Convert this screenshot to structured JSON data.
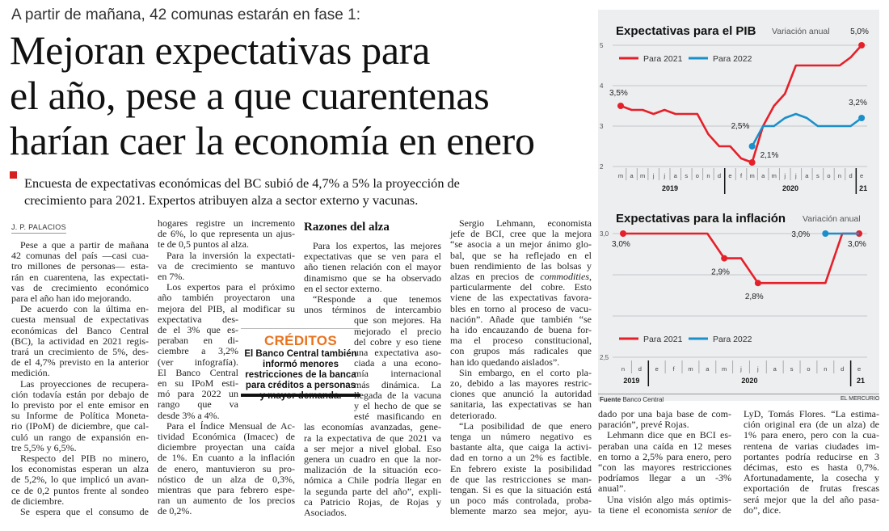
{
  "kicker": "A partir de mañana, 42 comunas estarán en fase 1:",
  "headline": [
    "Mejoran expectativas para",
    "el año, pese a que cuarentenas",
    "harían caer la economía en enero"
  ],
  "deck": [
    "Encuesta de expectativas económicas del BC subió de 4,7% a 5% la proyección de",
    "crecimiento para 2021. Expertos atribuyen alza a sector externo y vacunas."
  ],
  "columns": [
    {
      "byline": "J. P. PALACIOS",
      "paragraphs": [
        {
          "lines": [
            "Pese a que a partir de mañana",
            "42 comunas del país —casi cua-",
            "tro millones de personas— esta-",
            "rán en cuarentena, las expectati-",
            "vas de crecimiento económico",
            "para el año han ido mejorando."
          ]
        },
        {
          "lines": [
            "De acuerdo con la última en-",
            "cuesta mensual de expectativas",
            "económicas del Banco Central",
            "(BC), la actividad en 2021 regis-",
            "trará un crecimiento de 5%, des-",
            "de el 4,7% previsto en la anterior",
            "medición."
          ]
        },
        {
          "lines": [
            "Las proyecciones de recupera-",
            "ción todavía están por debajo de",
            "lo previsto por el ente emisor en",
            "su Informe de Política Moneta-",
            "rio (IPoM) de diciembre, que cal-",
            "culó un rango de expansión en-",
            "tre 5,5% y 6,5%."
          ]
        },
        {
          "lines": [
            "Respecto del PIB no minero,",
            "los economistas esperan un alza",
            "de 5,2%, lo que implicó un avan-",
            "ce de 0,2 puntos frente al sondeo",
            "de diciembre."
          ]
        },
        {
          "lines": [
            "Se espera que el consumo de"
          ],
          "open": true
        }
      ]
    },
    {
      "paragraphs": [
        {
          "cont": true,
          "lines": [
            "hogares registre un incremento",
            "de 6%, lo que representa un ajus-",
            "te de 0,5 puntos al alza."
          ]
        },
        {
          "lines": [
            "Para la inversión la expectati-",
            "va de crecimiento se mantuvo",
            "en 7%."
          ]
        },
        {
          "lines": [
            "Los expertos para el próximo",
            "año también proyectaron una",
            "mejora del PIB, al modificar su",
            "expectativa des-",
            "de el 3% que es-",
            "peraban en di-",
            "ciembre a 3,2%",
            "(ver infografía).",
            "El Banco Central",
            "en su IPoM esti-",
            "mó para 2022 un",
            "rango que va",
            "desde 3% a 4%."
          ]
        },
        {
          "lines": [
            "Para el Índice Mensual de Ac-",
            "tividad Económica (Imacec) de",
            "diciembre proyectan una caída",
            "de 1%. En cuanto a la inflación",
            "de enero, mantuvieron su pro-",
            "nóstico de un alza de 0,3%,",
            "mientras que para febrero espe-",
            "ran un aumento de los precios",
            "de 0,2%."
          ]
        }
      ]
    },
    {
      "subhead": "Razones del alza",
      "paragraphs": [
        {
          "lines": [
            "Para los expertos, las mejores",
            "expectativas que se ven para el",
            "año tienen relación con el mayor",
            "dinamismo que se ha observado",
            "en el sector externo."
          ]
        },
        {
          "lines": [
            "“Responde a que tenemos",
            "unos términos de intercambio",
            "que son mejores. Ha",
            "mejorado el precio",
            "del cobre y eso tiene",
            "una expectativa aso-",
            "ciada a una econo-",
            "mía internacional",
            "más dinámica. La",
            "llegada de la vacuna",
            "y el hecho de que se",
            "esté masificando en",
            "las economías avanzadas, gene-",
            "ra la expectativa de que 2021 va",
            "a ser mejor a nivel global. Eso",
            "genera un cuadro en que la nor-",
            "malización de la situación eco-",
            "nómica a Chile podría llegar en",
            "la segunda parte del año”, expli-",
            "ca Patricio Rojas, de Rojas y",
            "Asociados."
          ]
        }
      ]
    },
    {
      "paragraphs": [
        {
          "lines": [
            "Sergio Lehmann, economista",
            "jefe de BCI, cree que la mejora",
            "“se asocia a un mejor ánimo glo-",
            "bal, que se ha reflejado en el",
            "buen rendimiento de las bolsas y",
            "alzas en precios de *commodities*,",
            "particularmente del cobre. Esto",
            "viene de las expectativas favora-",
            "bles en torno al proceso de vacu-",
            "nación”. Añade que también “se",
            "ha ido encauzando de buena for-",
            "ma el proceso constitucional,",
            "con grupos más radicales que",
            "han ido quedando aislados”."
          ]
        },
        {
          "lines": [
            "Sin embargo, en el corto pla-",
            "zo, debido a las mayores restric-",
            "ciones que anunció la autoridad",
            "sanitaria, las expectativas se han",
            "deteriorado."
          ]
        },
        {
          "lines": [
            "“La posibilidad de que enero",
            "tenga un número negativo es",
            "bastante alta, que caiga la activi-",
            "dad en torno a un 2% es factible.",
            "En febrero existe la posibilidad",
            "de que las restricciones se man-",
            "tengan. Si es que la situación está",
            "un poco más controlada, proba-",
            "blemente marzo sea mejor, ayu-"
          ],
          "open": true
        }
      ]
    },
    {
      "paragraphs": [
        {
          "cont": true,
          "lines": [
            "dado por una baja base de com-",
            "paración”, prevé Rojas."
          ]
        },
        {
          "lines": [
            "Lehmann dice que en BCI es-",
            "peraban una caída en 12 meses",
            "en torno a 2,5% para enero, pero",
            "“con las mayores restricciones",
            "podríamos llegar a un -3%",
            "anual”."
          ]
        },
        {
          "lines": [
            "Una visión algo más optimis-",
            "ta tiene el economista *senior* de"
          ],
          "open": true
        }
      ]
    },
    {
      "paragraphs": [
        {
          "cont": true,
          "lines": [
            "LyD, Tomás Flores. “La estima-",
            "ción original era (de un alza) de",
            "1% para enero, pero con la cua-",
            "rentena de varias ciudades im-",
            "portantes podría reducirse en 3",
            "décimas, esto es hasta 0,7%.",
            "Afortunadamente, la cosecha y",
            "exportación de frutas frescas",
            "será mejor que la del año pasa-",
            "do”, dice."
          ]
        }
      ]
    }
  ],
  "sidebar_box": {
    "title": "CRÉDITOS",
    "lines": [
      "El Banco Central también",
      "informó menores",
      "restricciones de la banca",
      "para créditos a personas",
      "y mayor demanda."
    ],
    "title_color": "#e8731f"
  },
  "chart_data": [
    {
      "type": "line",
      "title": "Expectativas para el PIB",
      "subtitle": "Variación anual",
      "yticks": [
        "2",
        "3",
        "4",
        "5"
      ],
      "ylim": [
        2,
        5
      ],
      "months": [
        "m",
        "a",
        "m",
        "j",
        "j",
        "a",
        "s",
        "o",
        "n",
        "d",
        "e",
        "f",
        "m",
        "a",
        "m",
        "j",
        "j",
        "a",
        "s",
        "o",
        "n",
        "d",
        "e"
      ],
      "years": [
        {
          "label": "2019",
          "from": 0,
          "to": 9
        },
        {
          "label": "2020",
          "from": 10,
          "to": 21
        },
        {
          "label": "21",
          "from": 22,
          "to": 22
        }
      ],
      "legend": [
        "Para 2021",
        "Para 2022"
      ],
      "series": [
        {
          "name": "Para 2021",
          "color": "#e5202a",
          "start": 0,
          "values": [
            3.5,
            3.4,
            3.4,
            3.3,
            3.4,
            3.3,
            3.3,
            3.3,
            2.8,
            2.5,
            2.5,
            2.2,
            2.1,
            3.0,
            3.5,
            3.8,
            4.5,
            4.5,
            4.5,
            4.5,
            4.5,
            4.7,
            5.0
          ],
          "markers": [
            0,
            12,
            22
          ]
        },
        {
          "name": "Para 2022",
          "color": "#1a8fc9",
          "start": 12,
          "values": [
            2.5,
            3.0,
            3.0,
            3.2,
            3.3,
            3.2,
            3.0,
            3.0,
            3.0,
            3.0,
            3.2
          ],
          "markers": [
            0,
            10
          ]
        }
      ],
      "point_labels": [
        {
          "series": 0,
          "index": 0,
          "text": "3,5%"
        },
        {
          "series": 1,
          "index": 0,
          "text": "2,5%"
        },
        {
          "series": 0,
          "index": 12,
          "text": "2,1%"
        },
        {
          "series": 0,
          "index": 22,
          "text": "5,0%"
        },
        {
          "series": 1,
          "index": 10,
          "text": "3,2%"
        }
      ]
    },
    {
      "type": "line",
      "title": "Expectativas para la inflación",
      "subtitle": "Variación anual",
      "yticks": [
        "2,5",
        "3,0"
      ],
      "ylim": [
        2.5,
        3.0
      ],
      "months": [
        "n",
        "d",
        "e",
        "f",
        "m",
        "a",
        "m",
        "j",
        "j",
        "a",
        "s",
        "o",
        "n",
        "d",
        "e"
      ],
      "years": [
        {
          "label": "2019",
          "from": 0,
          "to": 1
        },
        {
          "label": "2020",
          "from": 2,
          "to": 13
        },
        {
          "label": "21",
          "from": 14,
          "to": 14
        }
      ],
      "legend": [
        "Para 2021",
        "Para 2022"
      ],
      "series": [
        {
          "name": "Para 2021",
          "color": "#e5202a",
          "start": 0,
          "values": [
            3.0,
            3.0,
            3.0,
            3.0,
            3.0,
            3.0,
            2.9,
            2.9,
            2.8,
            2.8,
            2.8,
            2.8,
            2.8,
            3.0,
            3.0
          ],
          "markers": [
            0,
            6,
            8,
            14
          ]
        },
        {
          "name": "Para 2022",
          "color": "#1a8fc9",
          "start": 12,
          "values": [
            3.0,
            3.0,
            3.0
          ],
          "markers": [
            0
          ]
        }
      ],
      "point_labels": [
        {
          "series": 0,
          "index": 0,
          "text": "3,0%"
        },
        {
          "series": 0,
          "index": 6,
          "text": "2,9%"
        },
        {
          "series": 0,
          "index": 8,
          "text": "2,8%"
        },
        {
          "series": 1,
          "index": 0,
          "text": "3,0%"
        },
        {
          "series": 0,
          "index": 14,
          "text": "3,0%"
        }
      ]
    }
  ],
  "source": {
    "label": "Fuente",
    "value": "Banco Central",
    "publisher": "EL MERCURIO"
  }
}
